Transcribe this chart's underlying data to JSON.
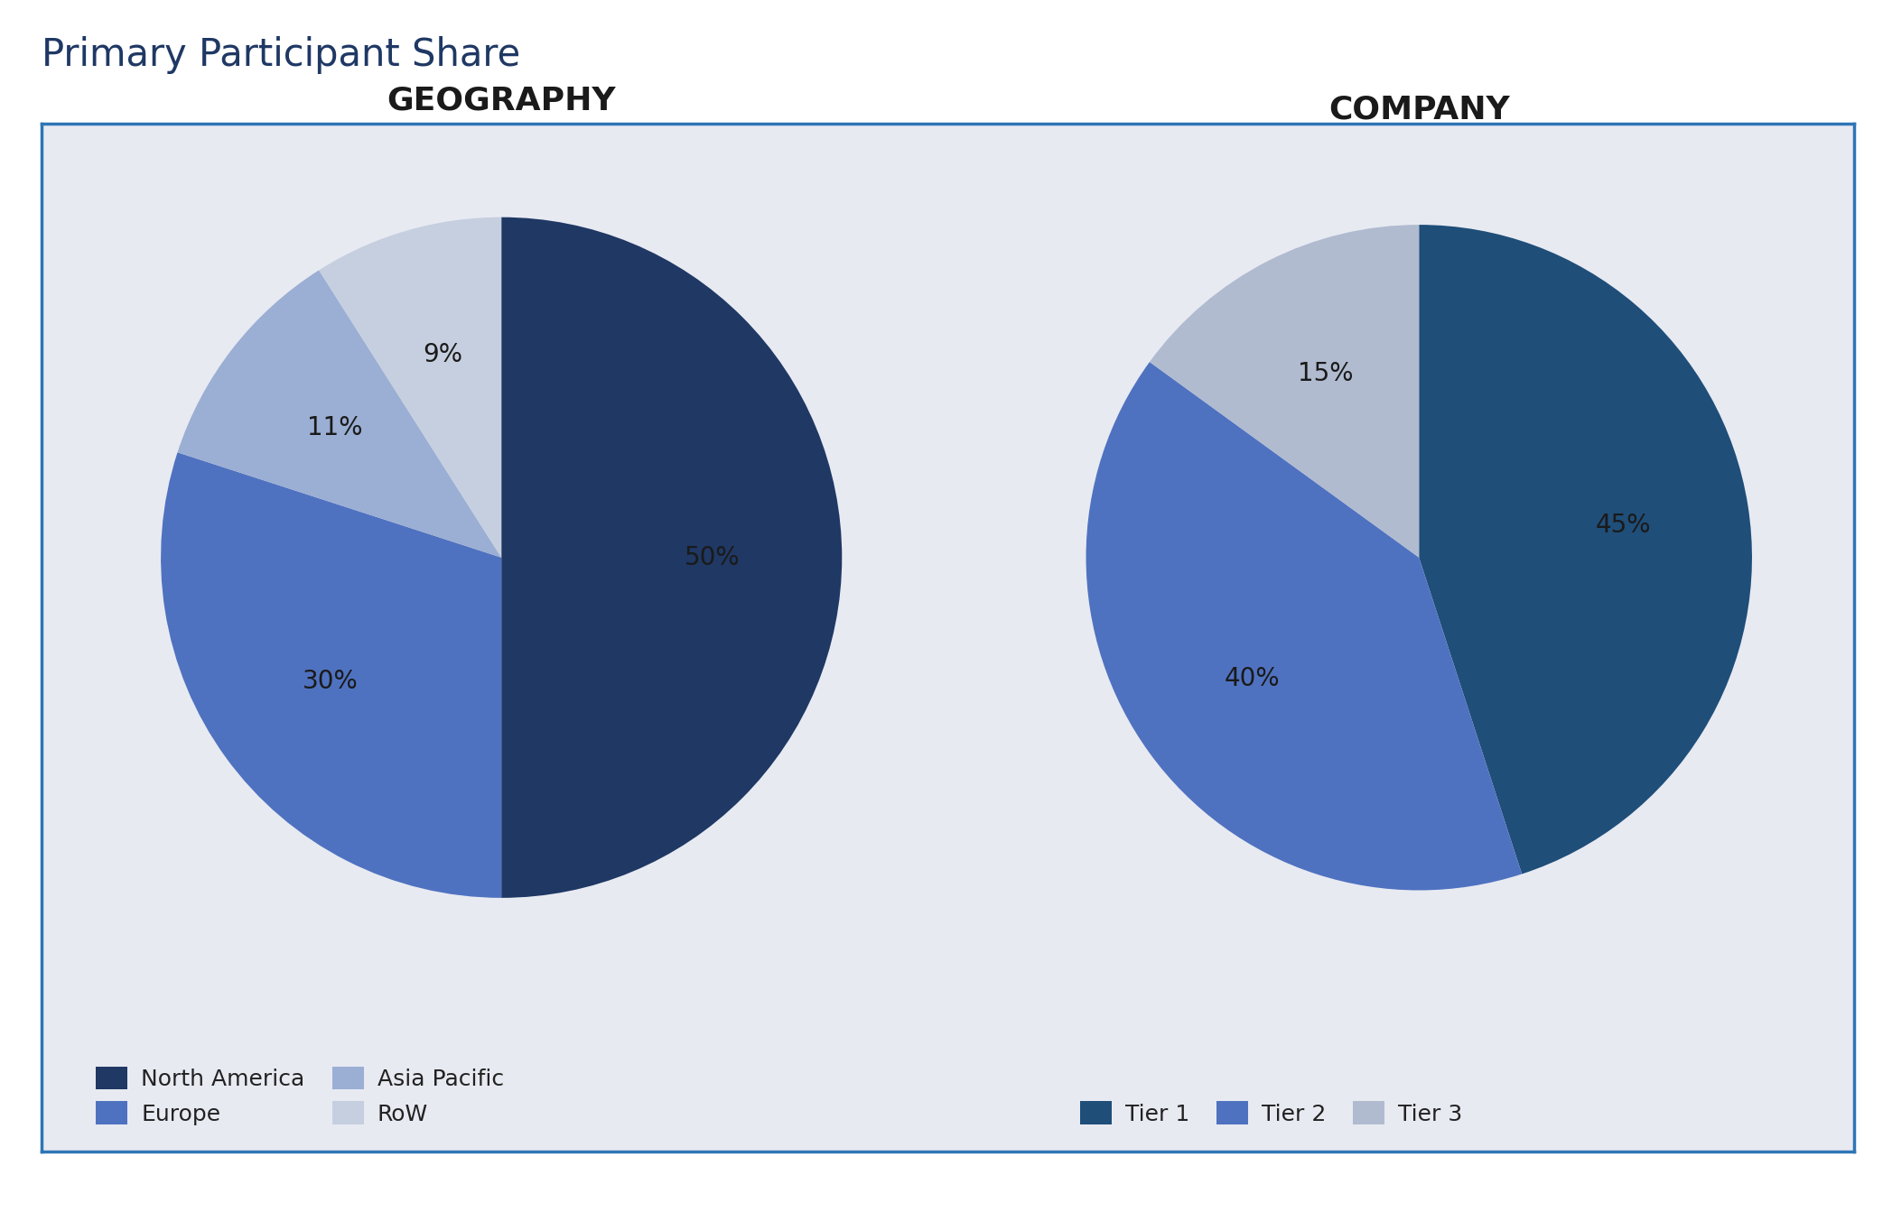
{
  "title": "Primary Participant Share",
  "title_color": "#1F3864",
  "title_fontsize": 30,
  "background_outer": "#ffffff",
  "background_inner": "#e8eaf2",
  "border_color": "#2e75b6",
  "geo_title": "GEOGRAPHY",
  "comp_title": "COMPANY",
  "subtitle_fontsize": 26,
  "subtitle_color": "#1a1a1a",
  "geo_slices": [
    50,
    30,
    11,
    9
  ],
  "geo_labels": [
    "50%",
    "30%",
    "11%",
    "9%"
  ],
  "geo_colors": [
    "#1F3864",
    "#4F72C0",
    "#9BAED4",
    "#C5CFDF"
  ],
  "geo_legend": [
    "North America",
    "Europe",
    "Asia Pacific",
    "RoW"
  ],
  "comp_slices": [
    45,
    40,
    15
  ],
  "comp_labels": [
    "45%",
    "40%",
    "15%"
  ],
  "comp_colors": [
    "#1F4E79",
    "#4F72C0",
    "#B0BBD0"
  ],
  "comp_legend": [
    "Tier 1",
    "Tier 2",
    "Tier 3"
  ],
  "label_fontsize": 20,
  "legend_fontsize": 18,
  "geo_startangle": 90,
  "comp_startangle": 90,
  "label_color_dark": "#1a1a1a",
  "label_color_light": "#ffffff"
}
